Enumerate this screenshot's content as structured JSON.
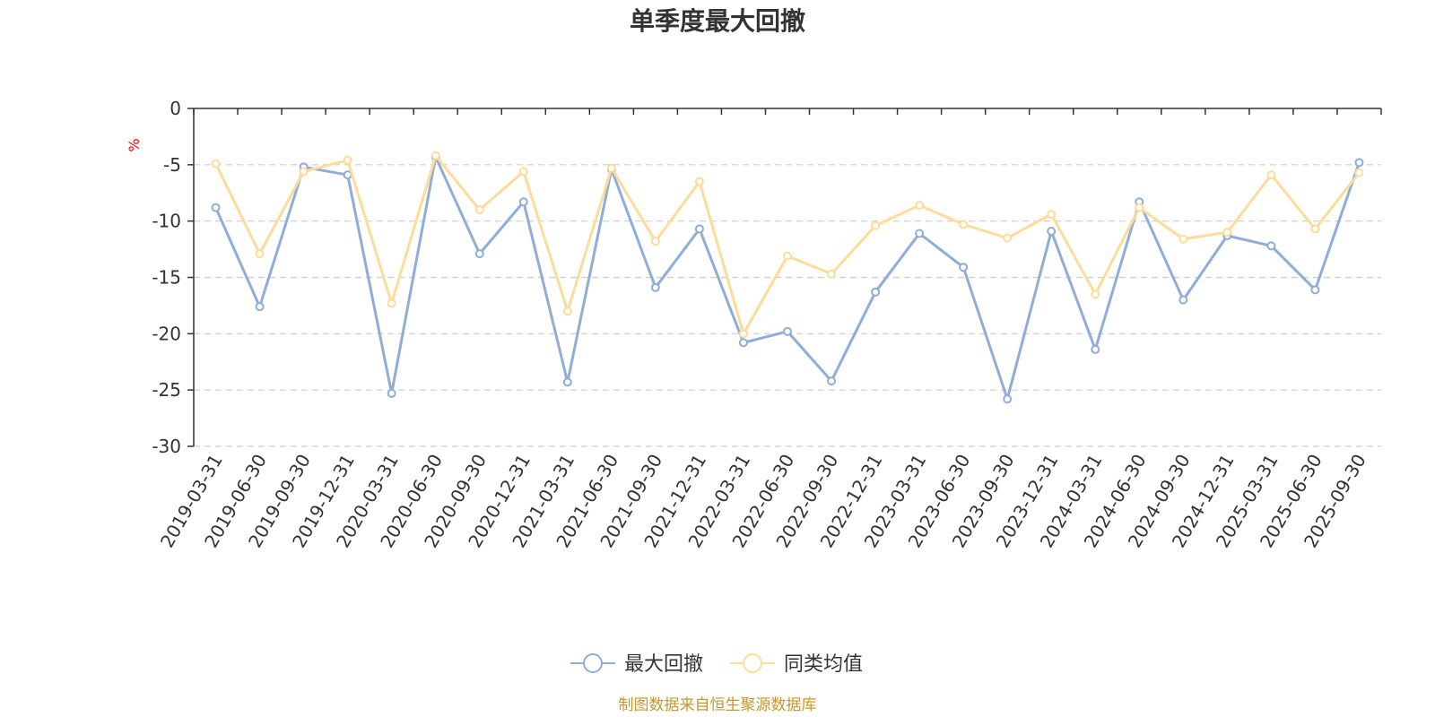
{
  "colors": {
    "series1": "#8eadd9",
    "series2": "#fddb99",
    "axis": "#333333",
    "grid": "#cccccc",
    "unit": "#ff0000",
    "source": "#c8962a"
  },
  "chart_data": {
    "type": "line",
    "title": "单季度最大回撤",
    "ylabel": "%",
    "ylim": [
      -30,
      0
    ],
    "yticks": [
      0,
      -5,
      -10,
      -15,
      -20,
      -25,
      -30
    ],
    "grid": "horizontal dashed",
    "legend_position": "bottom-center",
    "categories": [
      "2019-03-31",
      "2019-06-30",
      "2019-09-30",
      "2019-12-31",
      "2020-03-31",
      "2020-06-30",
      "2020-09-30",
      "2020-12-31",
      "2021-03-31",
      "2021-06-30",
      "2021-09-30",
      "2021-12-31",
      "2022-03-31",
      "2022-06-30",
      "2022-09-30",
      "2022-12-31",
      "2023-03-31",
      "2023-06-30",
      "2023-09-30",
      "2023-12-31",
      "2024-03-31",
      "2024-06-30",
      "2024-09-30",
      "2024-12-31",
      "2025-03-31",
      "2025-06-30",
      "2025-09-30"
    ],
    "series": [
      {
        "name": "最大回撤",
        "values": [
          -8.8,
          -17.6,
          -5.2,
          -5.9,
          -25.3,
          -4.3,
          -12.9,
          -8.3,
          -24.3,
          -5.4,
          -15.9,
          -10.7,
          -20.8,
          -19.8,
          -24.2,
          -16.3,
          -11.1,
          -14.1,
          -25.8,
          -10.9,
          -21.4,
          -8.3,
          -17.0,
          -11.3,
          -12.2,
          -16.1,
          -4.8
        ],
        "color": "#8eadd9"
      },
      {
        "name": "同类均值",
        "values": [
          -4.9,
          -12.9,
          -5.6,
          -4.6,
          -17.3,
          -4.2,
          -9.0,
          -5.6,
          -18.0,
          -5.3,
          -11.8,
          -6.5,
          -20.0,
          -13.1,
          -14.7,
          -10.4,
          -8.6,
          -10.3,
          -11.5,
          -9.4,
          -16.5,
          -8.8,
          -11.6,
          -11.0,
          -5.9,
          -10.7,
          -5.7
        ],
        "color": "#fddb99"
      }
    ],
    "source": "制图数据来自恒生聚源数据库"
  }
}
